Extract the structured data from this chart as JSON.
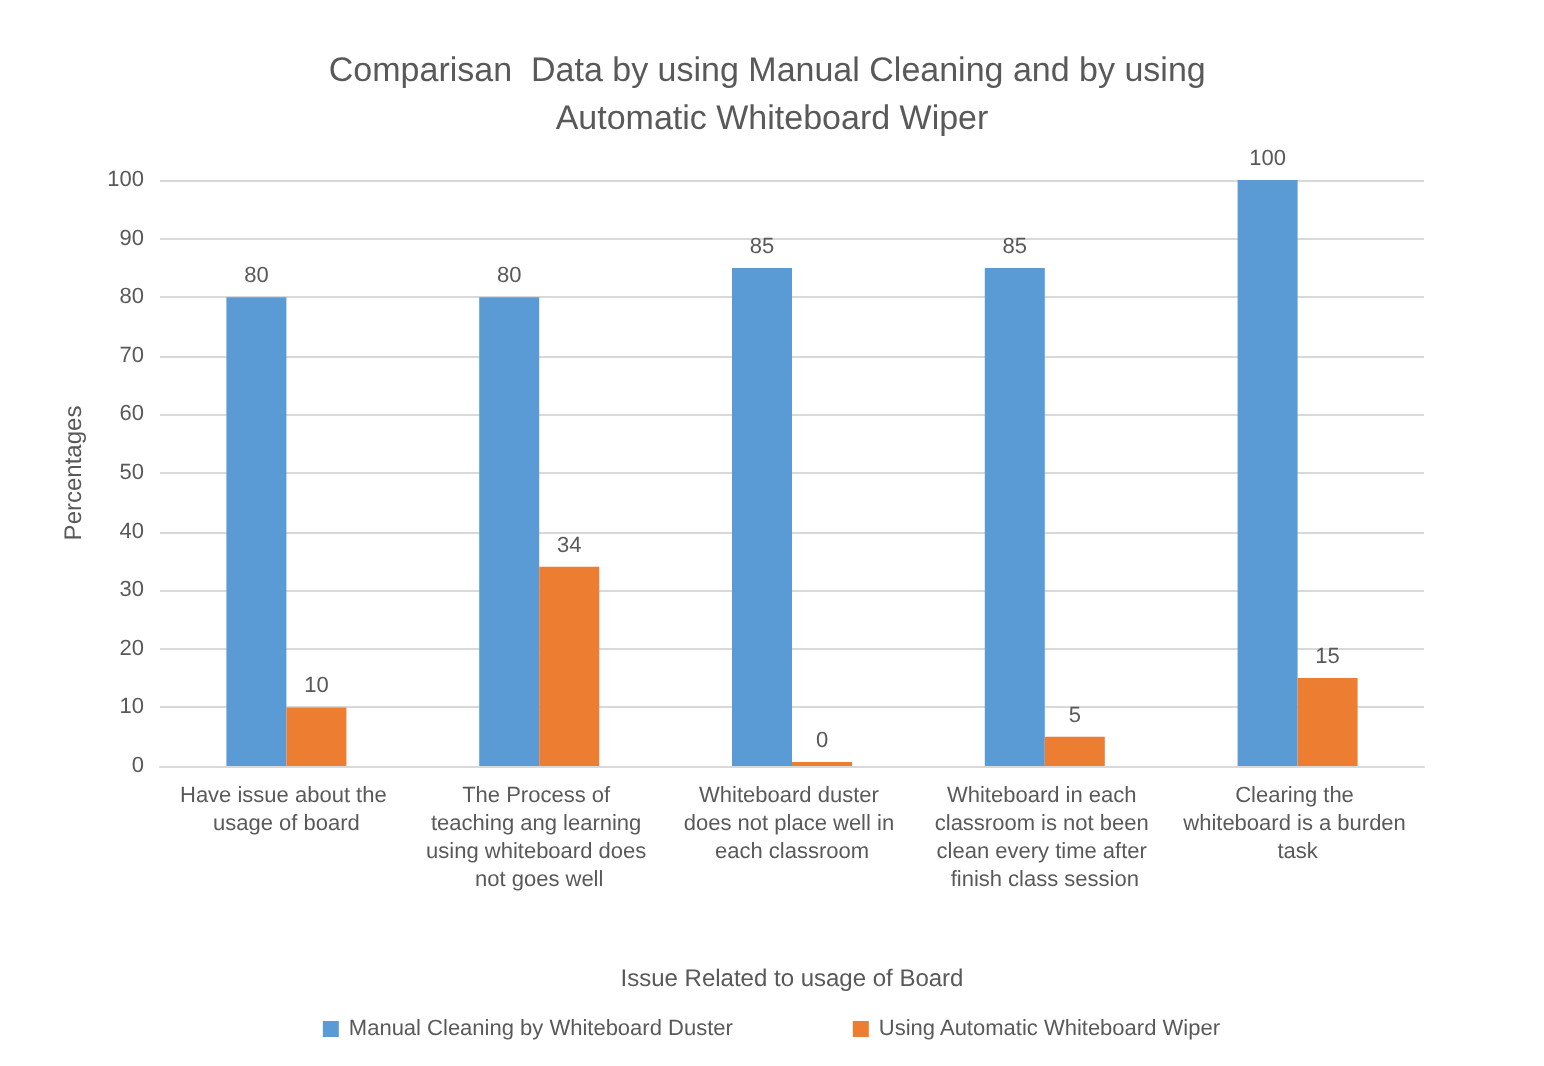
{
  "chart_data": {
    "type": "bar",
    "title": "Comparisan  Data by using Manual Cleaning and by using Automatic Whiteboard Wiper",
    "xlabel": "Issue Related to usage of Board",
    "ylabel": "Percentages",
    "categories": [
      "Have issue about the usage of board",
      "The Process of teaching ang learning using whiteboard does not goes well",
      "Whiteboard duster does not place well in each classroom",
      "Whiteboard in each classroom is not been clean every time after finish class session",
      "Clearing the whiteboard is a burden task"
    ],
    "series": [
      {
        "name": "Manual Cleaning by Whiteboard Duster",
        "color": "#5b9bd5",
        "values": [
          80,
          80,
          85,
          85,
          100
        ]
      },
      {
        "name": "Using Automatic Whiteboard Wiper",
        "color": "#ed7d31",
        "values": [
          10,
          34,
          0,
          5,
          15
        ]
      }
    ],
    "ylim": [
      0,
      100
    ],
    "yticks": [
      0,
      10,
      20,
      30,
      40,
      50,
      60,
      70,
      80,
      90,
      100
    ],
    "grid": "y",
    "legend": "bottom",
    "data_labels": true
  }
}
